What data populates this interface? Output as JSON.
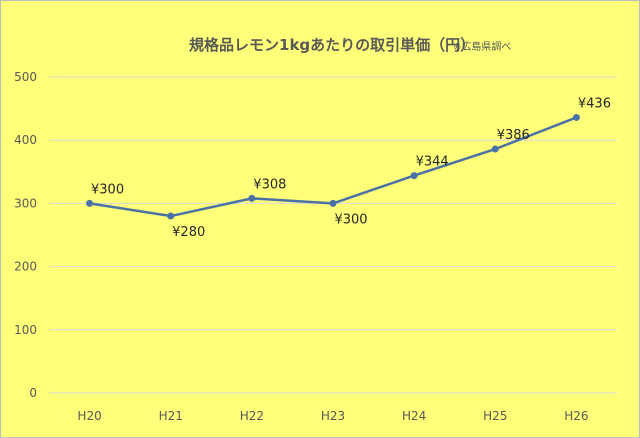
{
  "chart_data": {
    "type": "line",
    "title": "規格品レモン1kgあたりの取引単価（円）",
    "title_note": "※広島県調べ",
    "categories": [
      "H20",
      "H21",
      "H22",
      "H23",
      "H24",
      "H25",
      "H26"
    ],
    "series": [
      {
        "values": [
          300,
          280,
          308,
          300,
          344,
          386,
          436
        ],
        "data_labels": [
          "¥300",
          "¥280",
          "¥308",
          "¥300",
          "¥344",
          "¥386",
          "¥436"
        ],
        "color": "#4a72a6"
      }
    ],
    "ylim": [
      0,
      500
    ],
    "yticks": [
      0,
      100,
      200,
      300,
      400,
      500
    ],
    "xlabel": "",
    "ylabel": "",
    "grid": true,
    "legend": "none",
    "background_color": "#ffff7a",
    "gridline_color": "#d9d9d9"
  }
}
